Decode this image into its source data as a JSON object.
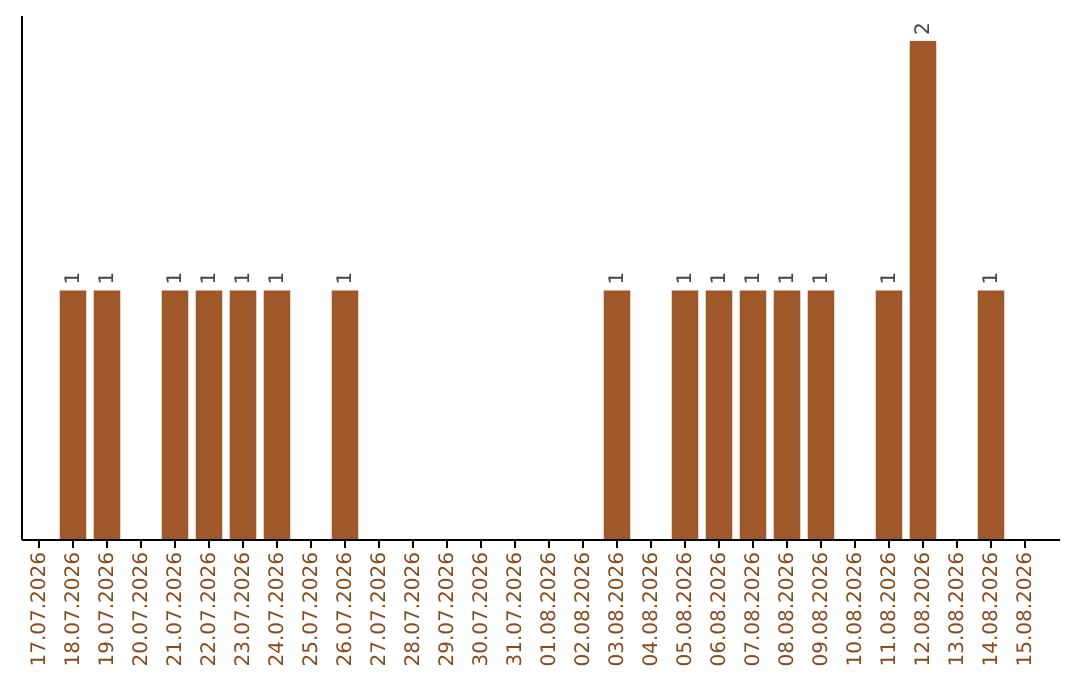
{
  "chart_data": {
    "type": "bar",
    "categories": [
      "17.07.2026",
      "18.07.2026",
      "19.07.2026",
      "20.07.2026",
      "21.07.2026",
      "22.07.2026",
      "23.07.2026",
      "24.07.2026",
      "25.07.2026",
      "26.07.2026",
      "27.07.2026",
      "28.07.2026",
      "29.07.2026",
      "30.07.2026",
      "31.07.2026",
      "01.08.2026",
      "02.08.2026",
      "03.08.2026",
      "04.08.2026",
      "05.08.2026",
      "06.08.2026",
      "07.08.2026",
      "08.08.2026",
      "09.08.2026",
      "10.08.2026",
      "11.08.2026",
      "12.08.2026",
      "13.08.2026",
      "14.08.2026",
      "15.08.2026"
    ],
    "values": [
      0,
      1,
      1,
      0,
      1,
      1,
      1,
      1,
      0,
      1,
      0,
      0,
      0,
      0,
      0,
      0,
      0,
      1,
      0,
      1,
      1,
      1,
      1,
      1,
      0,
      1,
      2,
      0,
      1,
      0
    ],
    "value_labels": [
      null,
      "1",
      "1",
      null,
      "1",
      "1",
      "1",
      "1",
      null,
      "1",
      null,
      null,
      null,
      null,
      null,
      null,
      null,
      "1",
      null,
      "1",
      "1",
      "1",
      "1",
      "1",
      null,
      "1",
      "2",
      null,
      "1",
      null
    ],
    "color": "#a0572a",
    "ylim": [
      0,
      2.1
    ],
    "tick_labels": "x"
  }
}
